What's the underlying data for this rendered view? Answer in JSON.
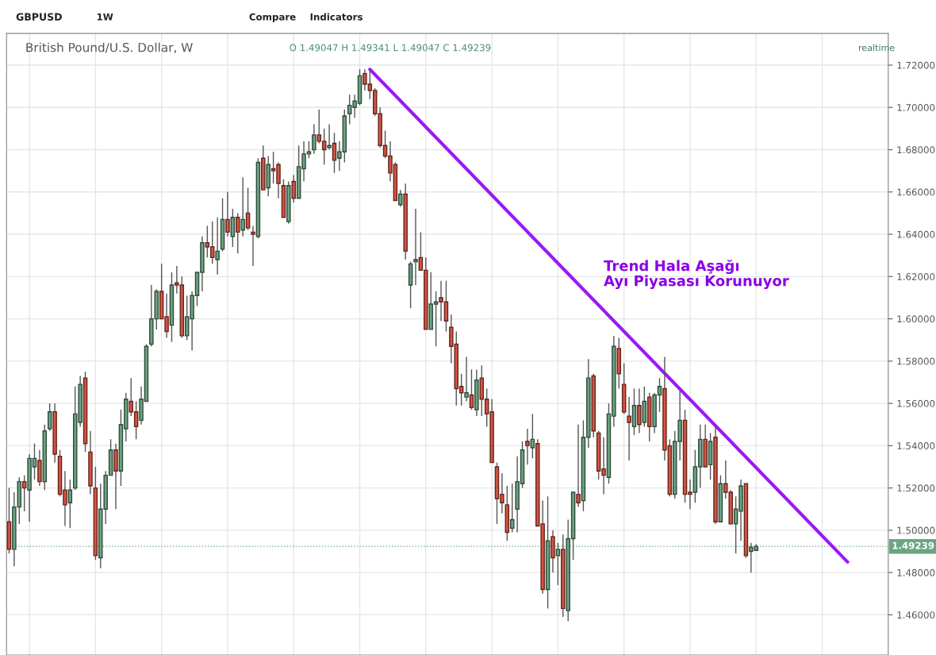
{
  "chart_data": {
    "type": "candlestick",
    "title": "British Pound/U.S. Dollar, W",
    "categories": [
      null,
      null,
      null,
      null,
      null,
      null,
      null,
      null,
      null,
      null,
      null,
      null,
      null,
      null,
      null,
      null,
      null,
      null,
      null,
      null,
      null,
      null,
      null,
      null,
      null,
      null,
      null,
      null,
      null,
      null,
      null,
      null,
      null,
      null,
      null,
      null,
      null,
      null,
      null,
      null,
      null,
      null,
      null,
      null,
      null,
      null,
      null,
      null,
      null,
      null,
      null,
      null,
      null,
      null,
      null,
      null,
      null,
      null,
      null,
      null,
      null,
      null,
      null,
      null,
      null,
      null,
      null,
      null,
      null,
      null,
      null,
      null,
      null,
      null,
      null,
      null,
      null,
      null,
      null,
      null,
      null,
      null,
      null,
      null,
      null,
      null,
      null,
      null,
      null,
      null,
      null,
      null,
      null,
      null,
      null,
      null,
      null,
      null,
      null,
      null,
      null,
      null,
      null,
      null,
      null,
      null,
      null,
      null,
      null,
      null,
      null,
      null,
      null,
      null,
      null,
      null,
      null,
      null,
      null,
      null,
      null,
      null,
      null,
      null,
      null,
      null,
      null,
      null,
      null,
      null,
      null,
      null,
      null,
      null,
      null,
      null,
      null,
      null,
      null,
      null,
      null,
      null,
      null,
      null,
      null,
      null,
      null,
      null,
      null,
      null,
      null,
      null,
      null,
      null,
      null,
      null,
      null,
      null,
      null,
      null,
      null,
      null,
      null,
      null,
      null,
      null
    ],
    "ohlc": [
      [
        1.504,
        1.52,
        1.489,
        1.491
      ],
      [
        1.491,
        1.518,
        1.483,
        1.511
      ],
      [
        1.511,
        1.525,
        1.503,
        1.523
      ],
      [
        1.523,
        1.526,
        1.509,
        1.52
      ],
      [
        1.519,
        1.536,
        1.504,
        1.534
      ],
      [
        1.53,
        1.541,
        1.524,
        1.534
      ],
      [
        1.533,
        1.538,
        1.521,
        1.523
      ],
      [
        1.523,
        1.55,
        1.519,
        1.547
      ],
      [
        1.548,
        1.56,
        1.547,
        1.556
      ],
      [
        1.556,
        1.56,
        1.532,
        1.536
      ],
      [
        1.535,
        1.538,
        1.516,
        1.517
      ],
      [
        1.519,
        1.528,
        1.502,
        1.512
      ],
      [
        1.513,
        1.524,
        1.501,
        1.519
      ],
      [
        1.52,
        1.568,
        1.519,
        1.555
      ],
      [
        1.551,
        1.573,
        1.549,
        1.569
      ],
      [
        1.572,
        1.575,
        1.537,
        1.541
      ],
      [
        1.537,
        1.547,
        1.517,
        1.521
      ],
      [
        1.52,
        1.53,
        1.486,
        1.488
      ],
      [
        1.487,
        1.522,
        1.482,
        1.51
      ],
      [
        1.51,
        1.528,
        1.503,
        1.526
      ],
      [
        1.526,
        1.543,
        1.526,
        1.538
      ],
      [
        1.538,
        1.541,
        1.51,
        1.528
      ],
      [
        1.528,
        1.557,
        1.521,
        1.55
      ],
      [
        1.548,
        1.565,
        1.542,
        1.562
      ],
      [
        1.561,
        1.572,
        1.554,
        1.556
      ],
      [
        1.556,
        1.561,
        1.543,
        1.549
      ],
      [
        1.552,
        1.568,
        1.55,
        1.562
      ],
      [
        1.561,
        1.588,
        1.561,
        1.587
      ],
      [
        1.588,
        1.616,
        1.587,
        1.6
      ],
      [
        1.6,
        1.614,
        1.595,
        1.613
      ],
      [
        1.613,
        1.626,
        1.6,
        1.6
      ],
      [
        1.601,
        1.612,
        1.591,
        1.594
      ],
      [
        1.597,
        1.622,
        1.589,
        1.616
      ],
      [
        1.617,
        1.625,
        1.612,
        1.616
      ],
      [
        1.616,
        1.62,
        1.591,
        1.592
      ],
      [
        1.592,
        1.611,
        1.59,
        1.601
      ],
      [
        1.6,
        1.613,
        1.585,
        1.611
      ],
      [
        1.611,
        1.622,
        1.606,
        1.622
      ],
      [
        1.622,
        1.639,
        1.613,
        1.636
      ],
      [
        1.636,
        1.644,
        1.629,
        1.634
      ],
      [
        1.634,
        1.646,
        1.626,
        1.629
      ],
      [
        1.628,
        1.648,
        1.621,
        1.632
      ],
      [
        1.633,
        1.657,
        1.632,
        1.647
      ],
      [
        1.647,
        1.66,
        1.639,
        1.641
      ],
      [
        1.639,
        1.652,
        1.634,
        1.648
      ],
      [
        1.648,
        1.65,
        1.631,
        1.641
      ],
      [
        1.642,
        1.667,
        1.639,
        1.647
      ],
      [
        1.65,
        1.662,
        1.642,
        1.643
      ],
      [
        1.641,
        1.644,
        1.625,
        1.64
      ],
      [
        1.639,
        1.676,
        1.638,
        1.674
      ],
      [
        1.676,
        1.682,
        1.661,
        1.661
      ],
      [
        1.662,
        1.677,
        1.658,
        1.673
      ],
      [
        1.671,
        1.679,
        1.664,
        1.67
      ],
      [
        1.673,
        1.674,
        1.657,
        1.664
      ],
      [
        1.663,
        1.666,
        1.648,
        1.648
      ],
      [
        1.646,
        1.665,
        1.645,
        1.663
      ],
      [
        1.665,
        1.668,
        1.655,
        1.657
      ],
      [
        1.657,
        1.682,
        1.657,
        1.672
      ],
      [
        1.671,
        1.684,
        1.665,
        1.678
      ],
      [
        1.678,
        1.684,
        1.676,
        1.679
      ],
      [
        1.68,
        1.692,
        1.678,
        1.687
      ],
      [
        1.687,
        1.699,
        1.683,
        1.684
      ],
      [
        1.684,
        1.69,
        1.673,
        1.68
      ],
      [
        1.681,
        1.692,
        1.68,
        1.682
      ],
      [
        1.683,
        1.688,
        1.669,
        1.675
      ],
      [
        1.676,
        1.684,
        1.67,
        1.679
      ],
      [
        1.679,
        1.699,
        1.674,
        1.696
      ],
      [
        1.697,
        1.706,
        1.692,
        1.701
      ],
      [
        1.7,
        1.706,
        1.695,
        1.703
      ],
      [
        1.702,
        1.718,
        1.701,
        1.715
      ],
      [
        1.716,
        1.718,
        1.708,
        1.711
      ],
      [
        1.711,
        1.718,
        1.704,
        1.708
      ],
      [
        1.708,
        1.709,
        1.696,
        1.697
      ],
      [
        1.697,
        1.7,
        1.681,
        1.682
      ],
      [
        1.682,
        1.689,
        1.676,
        1.677
      ],
      [
        1.677,
        1.684,
        1.665,
        1.669
      ],
      [
        1.673,
        1.674,
        1.656,
        1.656
      ],
      [
        1.654,
        1.661,
        1.653,
        1.659
      ],
      [
        1.659,
        1.664,
        1.628,
        1.632
      ],
      [
        1.616,
        1.627,
        1.605,
        1.626
      ],
      [
        1.627,
        1.652,
        1.616,
        1.628
      ],
      [
        1.629,
        1.641,
        1.623,
        1.623
      ],
      [
        1.623,
        1.629,
        1.595,
        1.595
      ],
      [
        1.595,
        1.622,
        1.595,
        1.607
      ],
      [
        1.607,
        1.613,
        1.587,
        1.608
      ],
      [
        1.61,
        1.618,
        1.599,
        1.608
      ],
      [
        1.608,
        1.618,
        1.594,
        1.599
      ],
      [
        1.596,
        1.602,
        1.579,
        1.587
      ],
      [
        1.588,
        1.594,
        1.559,
        1.567
      ],
      [
        1.568,
        1.574,
        1.559,
        1.565
      ],
      [
        1.563,
        1.582,
        1.561,
        1.565
      ],
      [
        1.564,
        1.576,
        1.557,
        1.558
      ],
      [
        1.557,
        1.576,
        1.554,
        1.571
      ],
      [
        1.572,
        1.578,
        1.554,
        1.562
      ],
      [
        1.562,
        1.567,
        1.549,
        1.555
      ],
      [
        1.556,
        1.562,
        1.532,
        1.532
      ],
      [
        1.53,
        1.532,
        1.503,
        1.515
      ],
      [
        1.517,
        1.527,
        1.508,
        1.513
      ],
      [
        1.512,
        1.521,
        1.495,
        1.499
      ],
      [
        1.501,
        1.522,
        1.499,
        1.505
      ],
      [
        1.51,
        1.535,
        1.499,
        1.523
      ],
      [
        1.522,
        1.542,
        1.52,
        1.538
      ],
      [
        1.542,
        1.548,
        1.531,
        1.54
      ],
      [
        1.539,
        1.555,
        1.534,
        1.543
      ],
      [
        1.541,
        1.543,
        1.502,
        1.502
      ],
      [
        1.503,
        1.514,
        1.47,
        1.472
      ],
      [
        1.472,
        1.516,
        1.463,
        1.495
      ],
      [
        1.497,
        1.5,
        1.48,
        1.487
      ],
      [
        1.488,
        1.494,
        1.474,
        1.491
      ],
      [
        1.491,
        1.498,
        1.459,
        1.463
      ],
      [
        1.462,
        1.505,
        1.457,
        1.496
      ],
      [
        1.496,
        1.518,
        1.486,
        1.518
      ],
      [
        1.517,
        1.55,
        1.511,
        1.513
      ],
      [
        1.514,
        1.552,
        1.509,
        1.544
      ],
      [
        1.544,
        1.581,
        1.539,
        1.572
      ],
      [
        1.573,
        1.574,
        1.544,
        1.547
      ],
      [
        1.546,
        1.547,
        1.524,
        1.528
      ],
      [
        1.529,
        1.544,
        1.517,
        1.526
      ],
      [
        1.525,
        1.56,
        1.522,
        1.555
      ],
      [
        1.554,
        1.592,
        1.549,
        1.587
      ],
      [
        1.586,
        1.591,
        1.567,
        1.574
      ],
      [
        1.569,
        1.579,
        1.555,
        1.556
      ],
      [
        1.554,
        1.563,
        1.533,
        1.551
      ],
      [
        1.549,
        1.567,
        1.545,
        1.559
      ],
      [
        1.559,
        1.567,
        1.546,
        1.55
      ],
      [
        1.551,
        1.568,
        1.549,
        1.561
      ],
      [
        1.563,
        1.565,
        1.542,
        1.549
      ],
      [
        1.549,
        1.565,
        1.546,
        1.564
      ],
      [
        1.564,
        1.572,
        1.556,
        1.568
      ],
      [
        1.567,
        1.582,
        1.533,
        1.538
      ],
      [
        1.54,
        1.543,
        1.516,
        1.517
      ],
      [
        1.517,
        1.547,
        1.515,
        1.542
      ],
      [
        1.542,
        1.566,
        1.533,
        1.552
      ],
      [
        1.552,
        1.557,
        1.513,
        1.517
      ],
      [
        1.518,
        1.524,
        1.51,
        1.517
      ],
      [
        1.518,
        1.538,
        1.513,
        1.53
      ],
      [
        1.53,
        1.55,
        1.52,
        1.543
      ],
      [
        1.543,
        1.55,
        1.53,
        1.53
      ],
      [
        1.531,
        1.546,
        1.524,
        1.542
      ],
      [
        1.544,
        1.549,
        1.503,
        1.504
      ],
      [
        1.504,
        1.526,
        1.504,
        1.522
      ],
      [
        1.522,
        1.533,
        1.515,
        1.518
      ],
      [
        1.518,
        1.519,
        1.503,
        1.503
      ],
      [
        1.503,
        1.516,
        1.489,
        1.51
      ],
      [
        1.509,
        1.524,
        1.495,
        1.521
      ],
      [
        1.522,
        1.522,
        1.487,
        1.488
      ],
      [
        1.49,
        1.494,
        1.48,
        1.492
      ],
      [
        1.49047,
        1.49341,
        1.49047,
        1.49239
      ],
      null,
      null,
      null,
      null,
      null,
      null,
      null,
      null,
      null,
      null,
      null,
      null,
      null,
      null,
      null,
      null,
      null,
      null
    ],
    "colors": [
      "#d75442",
      "#6ba583",
      "#6ba583",
      "#d75442",
      "#6ba583",
      "#6ba583",
      "#d75442",
      "#6ba583",
      "#6ba583",
      "#d75442",
      "#d75442",
      "#d75442",
      "#6ba583",
      "#6ba583",
      "#6ba583",
      "#d75442",
      "#d75442",
      "#d75442",
      "#6ba583",
      "#6ba583",
      "#6ba583",
      "#d75442",
      "#6ba583",
      "#6ba583",
      "#d75442",
      "#d75442",
      "#6ba583",
      "#6ba583",
      "#6ba583",
      "#6ba583",
      "#d75442",
      "#d75442",
      "#6ba583",
      "#d75442",
      "#d75442",
      "#6ba583",
      "#6ba583",
      "#6ba583",
      "#6ba583",
      "#d75442",
      "#d75442",
      "#6ba583",
      "#6ba583",
      "#d75442",
      "#6ba583",
      "#d75442",
      "#6ba583",
      "#d75442",
      "#d75442",
      "#6ba583",
      "#d75442",
      "#6ba583",
      "#d75442",
      "#d75442",
      "#d75442",
      "#6ba583",
      "#d75442",
      "#6ba583",
      "#6ba583",
      "#6ba583",
      "#6ba583",
      "#d75442",
      "#d75442",
      "#6ba583",
      "#d75442",
      "#6ba583",
      "#6ba583",
      "#6ba583",
      "#6ba583",
      "#6ba583",
      "#d75442",
      "#d75442",
      "#d75442",
      "#d75442",
      "#d75442",
      "#d75442",
      "#d75442",
      "#6ba583",
      "#d75442",
      "#6ba583",
      "#6ba583",
      "#d75442",
      "#d75442",
      "#6ba583",
      "#6ba583",
      "#d75442",
      "#d75442",
      "#d75442",
      "#d75442",
      "#d75442",
      "#6ba583",
      "#d75442",
      "#6ba583",
      "#d75442",
      "#d75442",
      "#d75442",
      "#d75442",
      "#d75442",
      "#d75442",
      "#6ba583",
      "#6ba583",
      "#6ba583",
      "#d75442",
      "#6ba583",
      "#d75442",
      "#d75442",
      "#6ba583",
      "#d75442",
      "#6ba583",
      "#d75442",
      "#6ba583",
      "#6ba583",
      "#d75442",
      "#6ba583",
      "#6ba583",
      "#d75442",
      "#d75442",
      "#d75442",
      "#6ba583",
      "#6ba583",
      "#d75442",
      "#d75442",
      "#d75442",
      "#6ba583",
      "#d75442",
      "#6ba583",
      "#d75442",
      "#6ba583",
      "#6ba583",
      "#d75442",
      "#d75442",
      "#6ba583",
      "#6ba583",
      "#d75442",
      "#d75442",
      "#6ba583",
      "#6ba583",
      "#d75442",
      "#6ba583",
      "#d75442",
      "#6ba583",
      "#d75442",
      "#d75442",
      "#6ba583",
      "#6ba583",
      "#d75442",
      "#6ba583",
      "#6ba583",
      null,
      null,
      null,
      null,
      null,
      null,
      null,
      null,
      null,
      null,
      null,
      null,
      null,
      null,
      null,
      null,
      null,
      null
    ],
    "series": [
      {
        "type": "line",
        "color": "#9b19f5",
        "values": [
          null,
          null,
          null,
          null,
          null,
          null,
          null,
          null,
          null,
          null,
          null,
          null,
          null,
          null,
          null,
          null,
          null,
          null,
          null,
          null,
          null,
          null,
          null,
          null,
          null,
          null,
          null,
          null,
          null,
          null,
          null,
          null,
          null,
          null,
          null,
          null,
          null,
          null,
          null,
          null,
          null,
          null,
          null,
          null,
          null,
          null,
          null,
          null,
          null,
          null,
          null,
          null,
          null,
          null,
          null,
          null,
          null,
          null,
          null,
          null,
          null,
          null,
          null,
          null,
          null,
          null,
          null,
          null,
          null,
          null,
          null,
          1.718,
          null,
          null,
          null,
          null,
          null,
          null,
          null,
          null,
          null,
          null,
          null,
          null,
          null,
          null,
          null,
          null,
          null,
          null,
          null,
          null,
          null,
          null,
          null,
          null,
          null,
          null,
          null,
          null,
          null,
          null,
          null,
          null,
          null,
          null,
          null,
          null,
          null,
          null,
          null,
          null,
          null,
          null,
          null,
          null,
          null,
          null,
          null,
          null,
          null,
          null,
          null,
          null,
          null,
          null,
          null,
          null,
          null,
          null,
          null,
          null,
          null,
          null,
          null,
          null,
          null,
          null,
          null,
          null,
          null,
          null,
          null,
          null,
          null,
          null,
          null,
          null,
          null,
          null,
          null,
          null,
          null,
          null,
          null,
          null,
          null,
          null,
          null,
          null,
          null,
          null,
          null,
          null,
          null,
          1.485
        ]
      }
    ],
    "ylim": [
      1.441,
      1.735
    ],
    "yticks": [
      {
        "value": 1.46,
        "label": "1.46000"
      },
      {
        "value": 1.48,
        "label": "1.48000"
      },
      {
        "value": 1.5,
        "label": "1.50000"
      },
      {
        "value": 1.52,
        "label": "1.52000"
      },
      {
        "value": 1.54,
        "label": "1.54000"
      },
      {
        "value": 1.56,
        "label": "1.56000"
      },
      {
        "value": 1.58,
        "label": "1.58000"
      },
      {
        "value": 1.6,
        "label": "1.60000"
      },
      {
        "value": 1.62,
        "label": "1.62000"
      },
      {
        "value": 1.64,
        "label": "1.64000"
      },
      {
        "value": 1.66,
        "label": "1.66000"
      },
      {
        "value": 1.68,
        "label": "1.68000"
      },
      {
        "value": 1.7,
        "label": "1.70000"
      },
      {
        "value": 1.72,
        "label": "1.72000"
      }
    ],
    "ref_lines": [
      {
        "axis": "y",
        "value": 1.49239,
        "label": "1.49239",
        "color": "#6ba583",
        "line_style": "dotted"
      }
    ],
    "grid": true,
    "annotations": [
      "GBPUSD",
      "1W",
      "Compare",
      "Indicators",
      "O 1.49047 H 1.49341 L 1.49047 C 1.49239",
      "realtime",
      "Trend Hala Aşağı\nAyı Piyasası Korunuyor"
    ]
  }
}
